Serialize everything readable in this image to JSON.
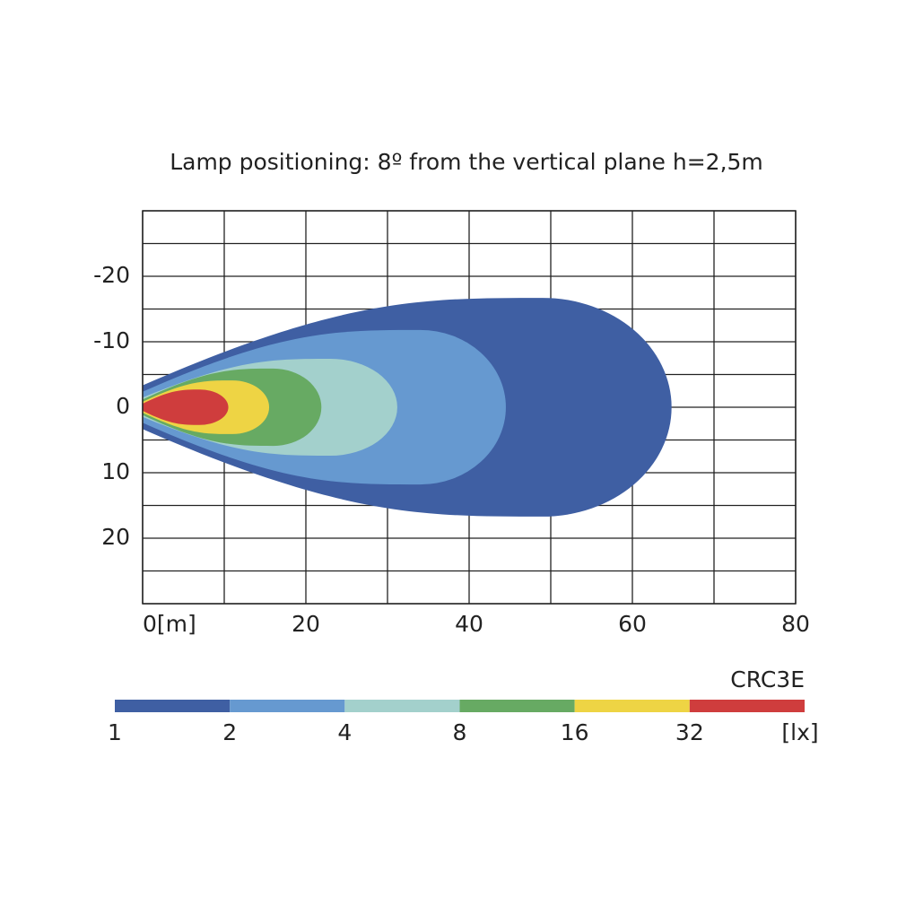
{
  "chart_data": {
    "type": "isolux",
    "title": "Lamp positioning: 8º from the vertical plane h=2,5m",
    "xlim": [
      0,
      80
    ],
    "ylim": [
      -30,
      30
    ],
    "xticks": [
      {
        "value": 0,
        "label": "0[m]"
      },
      20,
      40,
      60,
      80
    ],
    "yticks": [
      -20,
      -10,
      0,
      10,
      20
    ],
    "xgrid": [
      0,
      10,
      20,
      30,
      40,
      50,
      60,
      70,
      80
    ],
    "ygrid": [
      -30,
      -25,
      -20,
      -15,
      -10,
      -5,
      0,
      5,
      10,
      15,
      20,
      25,
      30
    ],
    "model": "CRC3E",
    "unit": "[lx]",
    "levels": [
      {
        "value": 1,
        "color": "#3f5fa3",
        "reach": 64.8,
        "half_width": 16.7,
        "peak_x": 49
      },
      {
        "value": 2,
        "color": "#6699d0",
        "reach": 44.5,
        "half_width": 11.8,
        "peak_x": 34
      },
      {
        "value": 4,
        "color": "#a3d0cc",
        "reach": 31.2,
        "half_width": 7.4,
        "peak_x": 23
      },
      {
        "value": 8,
        "color": "#67aa63",
        "reach": 21.9,
        "half_width": 5.9,
        "peak_x": 16
      },
      {
        "value": 16,
        "color": "#eed444",
        "reach": 15.5,
        "half_width": 4.1,
        "peak_x": 11
      },
      {
        "value": 32,
        "color": "#cf3d3d",
        "reach": 10.5,
        "half_width": 2.7,
        "peak_x": 7
      }
    ]
  }
}
